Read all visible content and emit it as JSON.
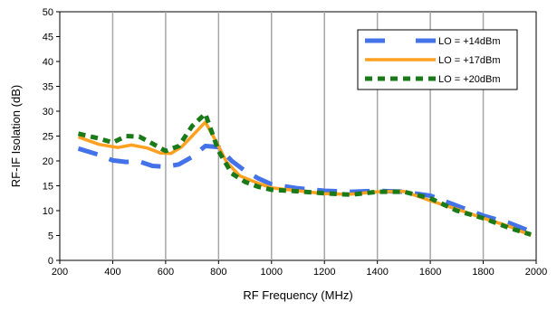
{
  "chart_data": {
    "type": "line",
    "title": "",
    "xlabel": "RF Frequency (MHz)",
    "ylabel": "RF-IF Isolation (dB)",
    "xlim": [
      200,
      2000
    ],
    "ylim": [
      0,
      50
    ],
    "xticks": [
      200,
      400,
      600,
      800,
      1000,
      1200,
      1400,
      1600,
      1800,
      2000
    ],
    "yticks": [
      0,
      5,
      10,
      15,
      20,
      25,
      30,
      35,
      40,
      45,
      50
    ],
    "grid": "vertical",
    "legend_position": "top-right",
    "series": [
      {
        "name": "LO = +14dBm",
        "color": "#4472e8",
        "style": "long-dash",
        "x": [
          270,
          350,
          400,
          450,
          500,
          550,
          600,
          650,
          700,
          750,
          800,
          850,
          900,
          950,
          1000,
          1100,
          1200,
          1300,
          1400,
          1500,
          1600,
          1700,
          1800,
          1900,
          1980
        ],
        "y": [
          22.5,
          21.2,
          20.1,
          19.8,
          19.9,
          19.0,
          18.8,
          19.3,
          20.8,
          23.0,
          22.8,
          20.0,
          18.0,
          16.5,
          15.3,
          14.5,
          14.0,
          13.8,
          14.0,
          13.8,
          13.0,
          11.0,
          9.0,
          7.5,
          5.8
        ]
      },
      {
        "name": "LO = +17dBm",
        "color": "#ffa020",
        "style": "solid",
        "x": [
          270,
          350,
          420,
          470,
          530,
          580,
          620,
          660,
          700,
          750,
          790,
          830,
          880,
          950,
          1000,
          1100,
          1200,
          1300,
          1400,
          1500,
          1600,
          1700,
          1800,
          1900,
          1980
        ],
        "y": [
          24.8,
          23.3,
          22.7,
          23.2,
          22.6,
          21.6,
          21.5,
          22.8,
          25.0,
          27.8,
          24.0,
          19.8,
          17.0,
          15.5,
          14.6,
          14.0,
          13.4,
          13.3,
          13.8,
          13.9,
          12.0,
          10.3,
          8.5,
          6.8,
          5.0
        ]
      },
      {
        "name": "LO = +20dBm",
        "color": "#1a7a1a",
        "style": "short-dash",
        "x": [
          270,
          350,
          400,
          450,
          500,
          550,
          600,
          650,
          700,
          750,
          800,
          850,
          900,
          950,
          1000,
          1100,
          1200,
          1300,
          1400,
          1500,
          1600,
          1700,
          1800,
          1900,
          1980
        ],
        "y": [
          25.5,
          24.5,
          23.7,
          25.0,
          24.9,
          23.5,
          22.0,
          23.0,
          27.0,
          29.5,
          22.0,
          17.5,
          15.8,
          14.8,
          14.2,
          13.9,
          13.5,
          13.2,
          13.8,
          13.8,
          12.5,
          10.0,
          8.5,
          6.5,
          5.2
        ]
      }
    ]
  }
}
